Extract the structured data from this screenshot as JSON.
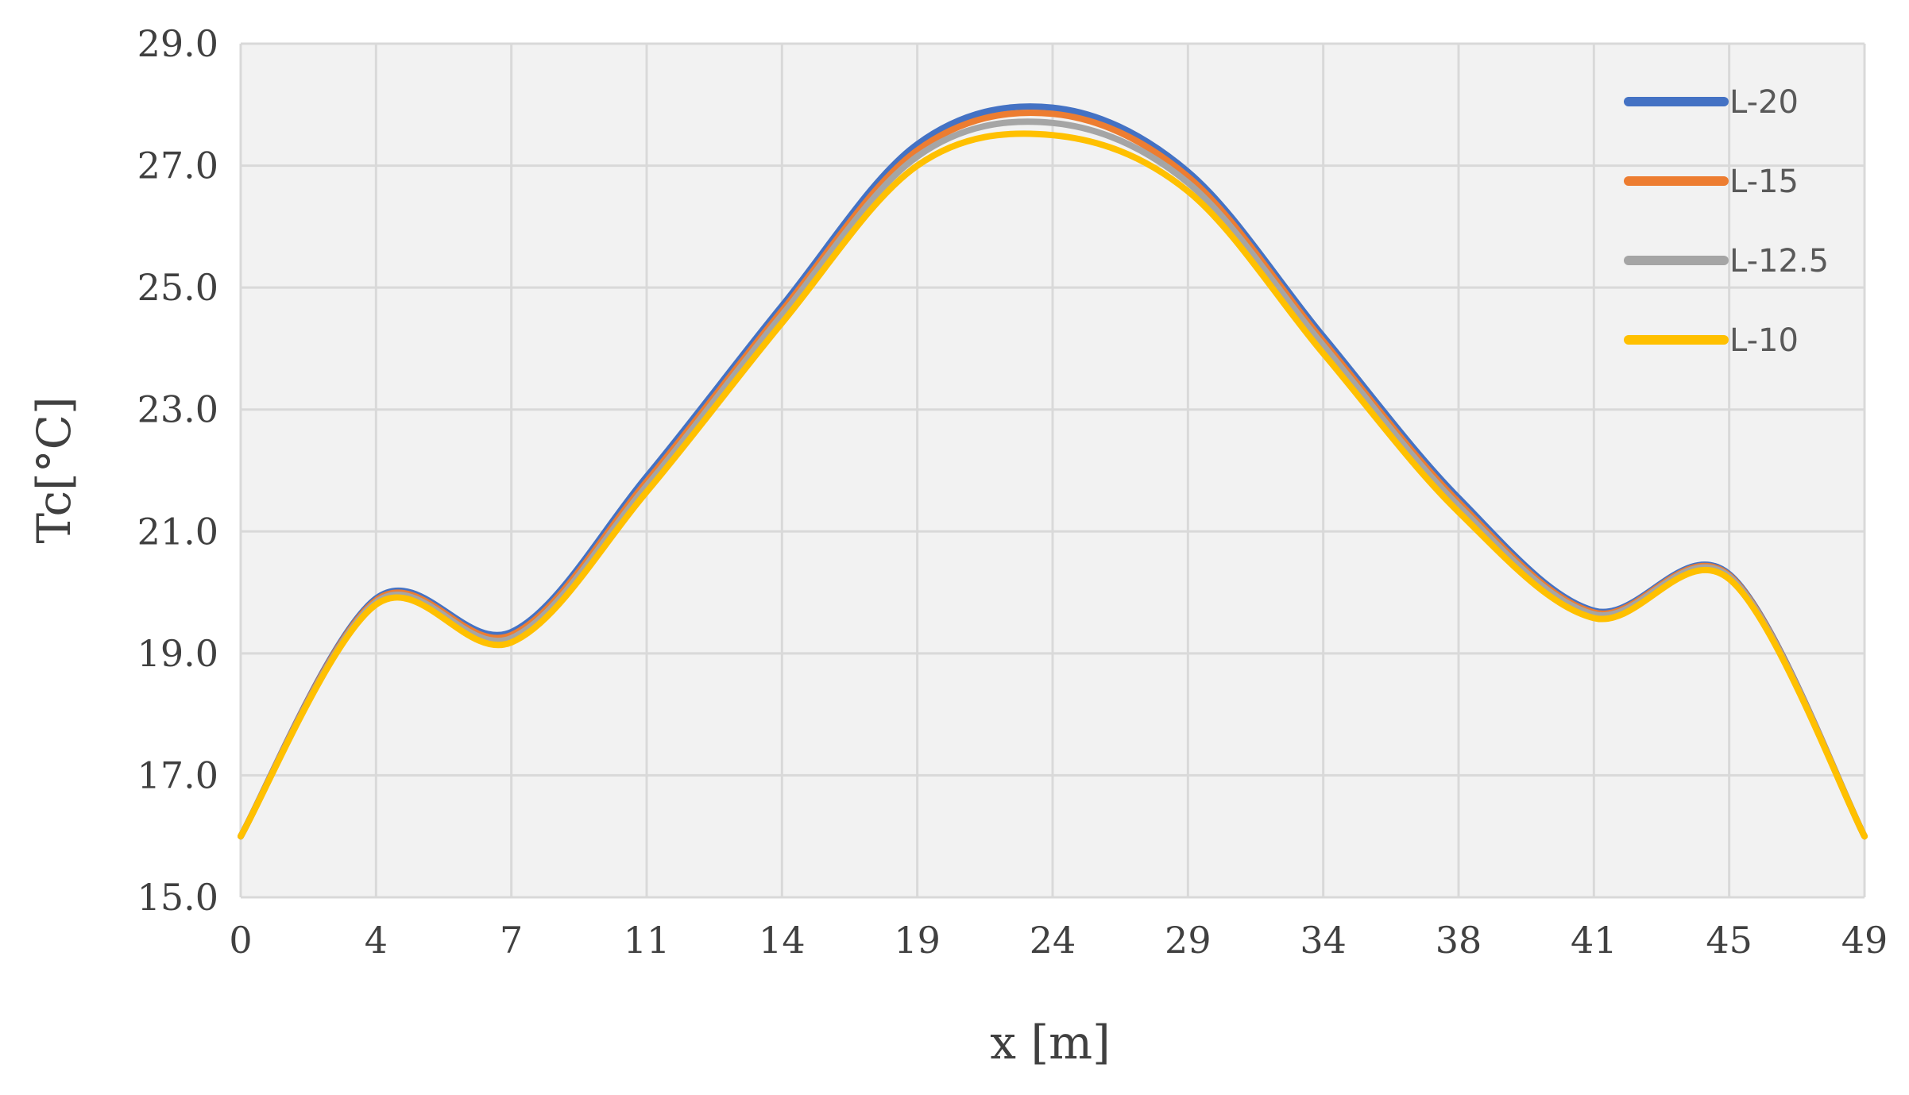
{
  "chart_data": {
    "type": "line",
    "xlabel": "x [m]",
    "ylabel": "Tc[°C]",
    "x_tick_labels": [
      "0",
      "4",
      "7",
      "11",
      "14",
      "19",
      "24",
      "29",
      "34",
      "38",
      "41",
      "45",
      "49"
    ],
    "y_tick_labels": [
      "15.0",
      "17.0",
      "19.0",
      "21.0",
      "23.0",
      "25.0",
      "27.0",
      "29.0"
    ],
    "ylim": [
      15.0,
      29.0
    ],
    "grid": true,
    "legend_position": "top-right",
    "x_categories": [
      "0",
      "4",
      "7",
      "11",
      "14",
      "19",
      "24",
      "29",
      "34",
      "38",
      "41",
      "45",
      "49"
    ],
    "series": [
      {
        "name": "L-20",
        "color": "#4472C4",
        "values": [
          16.0,
          19.9,
          19.35,
          21.9,
          24.7,
          27.35,
          27.95,
          26.9,
          24.2,
          21.55,
          19.7,
          20.3,
          16.0
        ]
      },
      {
        "name": "L-15",
        "color": "#ED7D31",
        "values": [
          16.0,
          19.87,
          19.3,
          21.82,
          24.62,
          27.25,
          27.85,
          26.82,
          24.12,
          21.48,
          19.67,
          20.28,
          16.0
        ]
      },
      {
        "name": "L-12.5",
        "color": "#A5A5A5",
        "values": [
          16.0,
          19.84,
          19.25,
          21.75,
          24.55,
          27.15,
          27.7,
          26.72,
          24.05,
          21.42,
          19.64,
          20.26,
          16.0
        ]
      },
      {
        "name": "L-10",
        "color": "#FFC000",
        "values": [
          16.0,
          19.8,
          19.18,
          21.65,
          24.42,
          27.0,
          27.5,
          26.58,
          23.92,
          21.32,
          19.58,
          20.22,
          16.0
        ]
      }
    ]
  },
  "colors": {
    "plot_background": "#F2F2F2",
    "gridline": "#D9D9D9",
    "text": "#404040"
  }
}
